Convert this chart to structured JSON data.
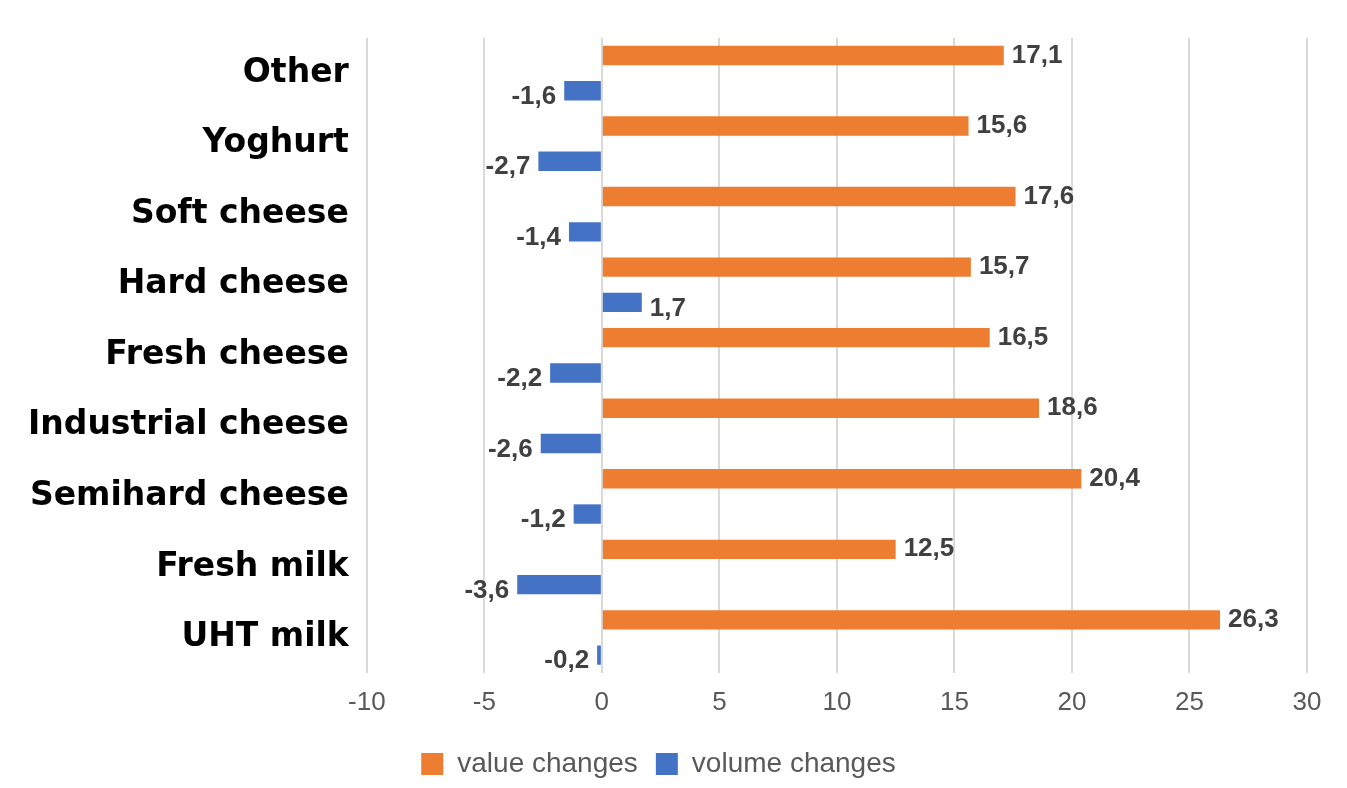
{
  "chart_data": {
    "type": "bar",
    "orientation": "horizontal",
    "categories": [
      "Other",
      "Yoghurt",
      "Soft cheese",
      "Hard cheese",
      "Fresh cheese",
      "Industrial cheese",
      "Semihard cheese",
      "Fresh milk",
      "UHT milk"
    ],
    "series": [
      {
        "name": "value changes",
        "color": "#ed7d31",
        "values": [
          17.1,
          15.6,
          17.6,
          15.7,
          16.5,
          18.6,
          20.4,
          12.5,
          26.3
        ],
        "value_labels": [
          "17,1",
          "15,6",
          "17,6",
          "15,7",
          "16,5",
          "18,6",
          "20,4",
          "12,5",
          "26,3"
        ]
      },
      {
        "name": "volume changes",
        "color": "#4472c4",
        "values": [
          -1.6,
          -2.7,
          -1.4,
          1.7,
          -2.2,
          -2.6,
          -1.2,
          -3.6,
          -0.2
        ],
        "value_labels": [
          "-1,6",
          "-2,7",
          "-1,4",
          "1,7",
          "-2,2",
          "-2,6",
          "-1,2",
          "-3,6",
          "-0,2"
        ]
      }
    ],
    "xlim": [
      -10,
      30
    ],
    "xticks": [
      -10,
      -5,
      0,
      5,
      10,
      15,
      20,
      25,
      30
    ],
    "grid": "x",
    "legend": "bottom"
  }
}
